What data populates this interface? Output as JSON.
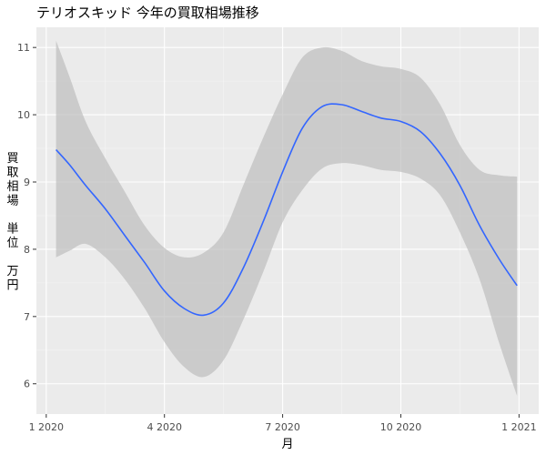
{
  "chart_data": {
    "type": "line",
    "title": "テリオスキッド 今年の買取相場推移",
    "xlabel": "月",
    "ylabel": "買取相場 単位 万円",
    "ylabel_lines": [
      "買",
      "取",
      "相",
      "場",
      "",
      "単",
      "位",
      "",
      "万",
      "円"
    ],
    "x_ticks": [
      {
        "value": 1,
        "label": "1 2020"
      },
      {
        "value": 4,
        "label": "4 2020"
      },
      {
        "value": 7,
        "label": "7 2020"
      },
      {
        "value": 10,
        "label": "10 2020"
      },
      {
        "value": 13,
        "label": "1 2021"
      }
    ],
    "y_ticks": [
      6,
      7,
      8,
      9,
      10,
      11
    ],
    "xlim": [
      0.75,
      13.5
    ],
    "ylim": [
      5.55,
      11.3
    ],
    "grid": true,
    "series": [
      {
        "color": "#3366ff",
        "smoothed": true,
        "x": [
          1.25,
          1.6,
          2,
          2.5,
          3,
          3.5,
          4,
          4.5,
          5,
          5.5,
          6,
          6.5,
          7,
          7.5,
          8,
          8.5,
          9,
          9.5,
          10,
          10.5,
          11,
          11.5,
          12,
          12.5,
          12.95
        ],
        "y": [
          9.48,
          9.25,
          8.95,
          8.6,
          8.2,
          7.8,
          7.38,
          7.12,
          7.02,
          7.2,
          7.72,
          8.4,
          9.15,
          9.8,
          10.12,
          10.15,
          10.05,
          9.95,
          9.9,
          9.75,
          9.42,
          8.95,
          8.35,
          7.85,
          7.46
        ],
        "band_upper": [
          11.1,
          10.55,
          9.9,
          9.35,
          8.85,
          8.35,
          8.02,
          7.88,
          7.95,
          8.25,
          8.95,
          9.65,
          10.3,
          10.85,
          11.0,
          10.95,
          10.8,
          10.72,
          10.68,
          10.55,
          10.15,
          9.55,
          9.18,
          9.1,
          9.08
        ],
        "band_lower": [
          7.88,
          7.98,
          8.08,
          7.88,
          7.55,
          7.12,
          6.62,
          6.25,
          6.1,
          6.35,
          6.95,
          7.65,
          8.4,
          8.88,
          9.2,
          9.28,
          9.25,
          9.18,
          9.15,
          9.05,
          8.8,
          8.25,
          7.55,
          6.6,
          5.82
        ]
      }
    ]
  }
}
